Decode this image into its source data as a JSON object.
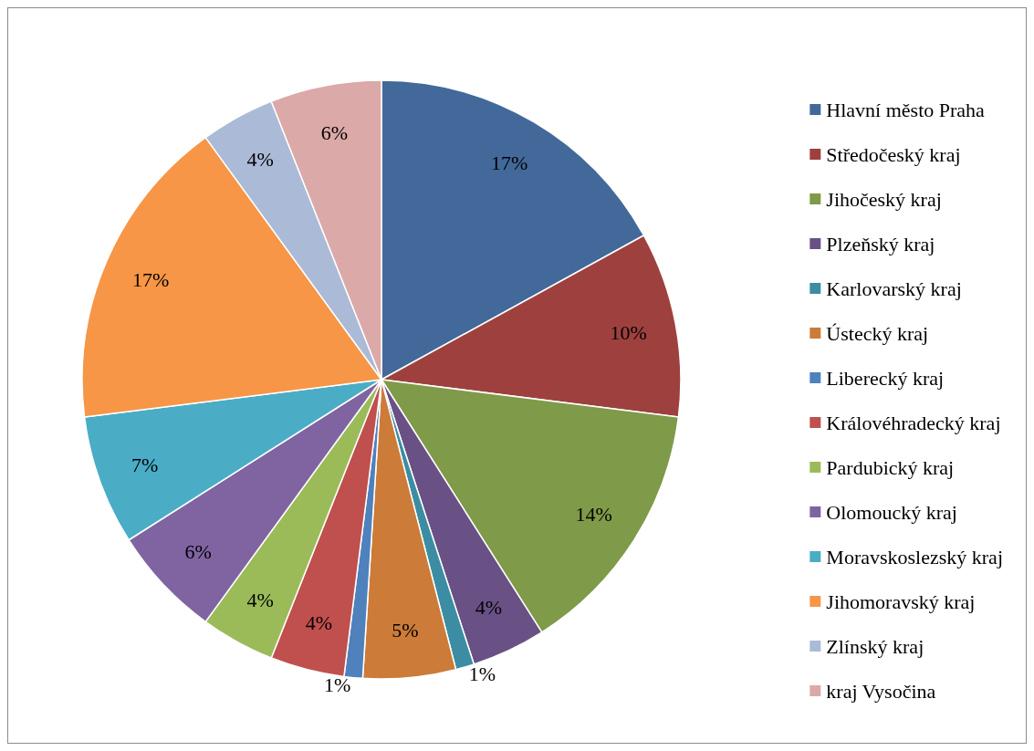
{
  "chart_data": {
    "type": "pie",
    "legend": "right",
    "value_labels": [
      "17%",
      "10%",
      "14%",
      "4%",
      "1%",
      "5%",
      "1%",
      "4%",
      "4%",
      "6%",
      "7%",
      "17%",
      "4%",
      "6%"
    ],
    "categories": [
      "Hlavní město Praha",
      "Středočeský kraj",
      "Jihočeský kraj",
      "Plzeňský kraj",
      "Karlovarský kraj",
      "Ústecký kraj",
      "Liberecký kraj",
      "Královéhradecký kraj",
      "Pardubický kraj",
      "Olomoucký kraj",
      "Moravskoslezský kraj",
      "Jihomoravský kraj",
      "Zlínský kraj",
      "kraj Vysočina"
    ],
    "values": [
      17,
      10,
      14,
      4,
      1,
      5,
      1,
      4,
      4,
      6,
      7,
      17,
      4,
      6
    ],
    "colors": [
      "#426999",
      "#9e413e",
      "#7f9a48",
      "#695185",
      "#3c8da3",
      "#cc7b38",
      "#4f81bd",
      "#c0504d",
      "#9bbb59",
      "#8064a2",
      "#4bacc6",
      "#f79646",
      "#aabad7",
      "#dba9a8"
    ]
  }
}
